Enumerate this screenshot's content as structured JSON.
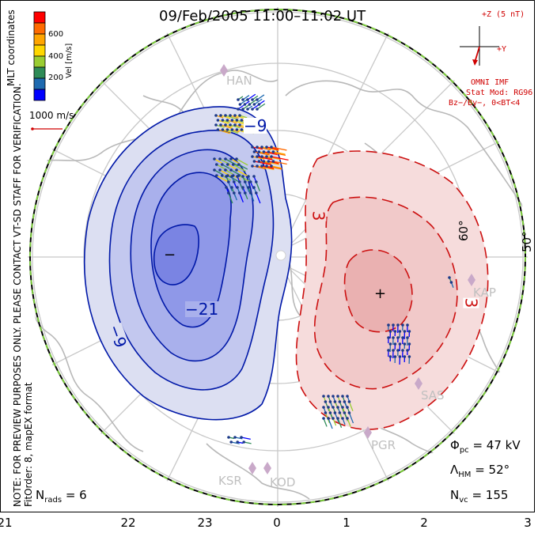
{
  "title": "09/Feb/2005 11:00–11:02 UT",
  "side_notes": {
    "left_vertical": "NOTE: FOR PREVIEW PURPOSES ONLY. PLEASE CONTACT VT-SD STAFF FOR VERIFICATION.",
    "left_vertical2": "FitOrder: 8, mapEX format",
    "coords": "MLT coordinates"
  },
  "colorbar": {
    "label": "Vel [m/s]",
    "ticks": [
      "600",
      "400",
      "200"
    ],
    "colors": [
      "#ff0000",
      "#ff6a00",
      "#ffa500",
      "#ffd700",
      "#9acd32",
      "#2e8b57",
      "#1e6ab0",
      "#0000ff"
    ]
  },
  "scale_vector": "1000 m/s",
  "imf": {
    "header": "+Z (5 nT)",
    "y_label": "+Y",
    "line1": "OMNI IMF",
    "line2": "Stat Mod: RG96",
    "line3": "Bz−/By−, 0<BT<4"
  },
  "contour_labels": {
    "neg_minus9_top": "−9",
    "neg_minus21": "−21",
    "neg_minus9_bot": "−9",
    "pos_3_top": "3",
    "pos_3_right": "3",
    "neg_center": "−",
    "pos_center": "+"
  },
  "lat_labels": [
    "60°",
    "50°"
  ],
  "stations": [
    "HAN",
    "KAP",
    "SAS",
    "PGR",
    "KSR",
    "KOD"
  ],
  "stats": {
    "phi_pc_value": "= 47 kV",
    "lambda_hm_value": "= 52°",
    "n_vc_value": "= 155",
    "n_rads_value": "= 6"
  },
  "mlt_ticks": [
    "21",
    "22",
    "23",
    "0",
    "1",
    "2",
    "3"
  ]
}
